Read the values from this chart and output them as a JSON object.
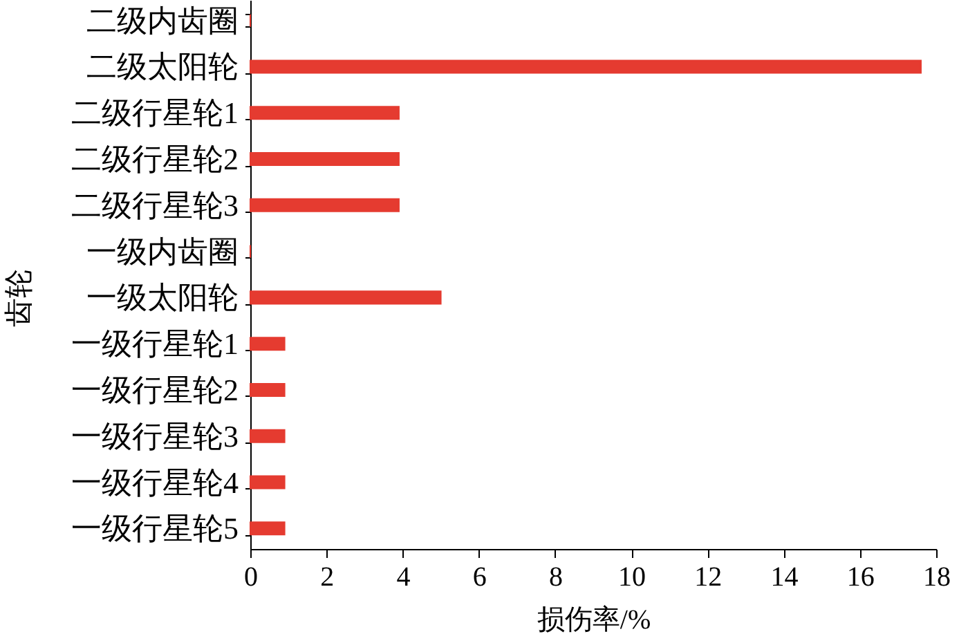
{
  "chart_data": {
    "type": "bar",
    "orientation": "horizontal",
    "xlabel": "损伤率/%",
    "ylabel": "齿轮",
    "categories": [
      "二级内齿圈",
      "二级太阳轮",
      "二级行星轮1",
      "二级行星轮2",
      "二级行星轮3",
      "一级内齿圈",
      "一级太阳轮",
      "一级行星轮1",
      "一级行星轮2",
      "一级行星轮3",
      "一级行星轮4",
      "一级行星轮5"
    ],
    "values": [
      0,
      17.6,
      3.9,
      3.9,
      3.9,
      0,
      5,
      0.9,
      0.9,
      0.9,
      0.9,
      0.9
    ],
    "color": "#e53b30",
    "xlim": [
      0,
      18
    ],
    "xticks": [
      0,
      2,
      4,
      6,
      8,
      10,
      12,
      14,
      16,
      18
    ]
  }
}
